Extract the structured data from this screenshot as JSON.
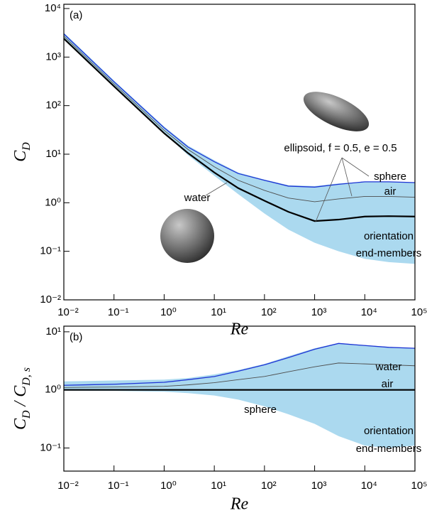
{
  "chart_data": [
    {
      "type": "line",
      "label": "(a)",
      "log_x": true,
      "log_y": true,
      "ylabel": [
        "C",
        "D"
      ],
      "xlabel": "Re",
      "x": [
        0.01,
        0.1,
        1,
        3,
        10,
        30,
        100,
        300,
        1000,
        3000,
        10000,
        30000,
        100000
      ],
      "xlim": [
        0.01,
        100000
      ],
      "xticks": [
        {
          "value": 0.01,
          "label": "10⁻²"
        },
        {
          "value": 0.1,
          "label": "10⁻¹"
        },
        {
          "value": 1,
          "label": "10⁰"
        },
        {
          "value": 10,
          "label": "10¹"
        },
        {
          "value": 100,
          "label": "10²"
        },
        {
          "value": 1000,
          "label": "10³"
        },
        {
          "value": 10000,
          "label": "10⁴"
        },
        {
          "value": 100000,
          "label": "10⁵"
        }
      ],
      "ylim": [
        0.01,
        10000
      ],
      "yticks": [
        {
          "value": 0.01,
          "label": "10⁻²"
        },
        {
          "value": 0.1,
          "label": "10⁻¹"
        },
        {
          "value": 1,
          "label": "10⁰"
        },
        {
          "value": 10,
          "label": "10¹"
        },
        {
          "value": 100,
          "label": "10²"
        },
        {
          "value": 1000,
          "label": "10³"
        },
        {
          "value": 10000,
          "label": "10⁴"
        }
      ],
      "band": {
        "name": [
          "orientation",
          "end-members"
        ],
        "color": "#abd9ef",
        "upper": [
          3200,
          330,
          37,
          15,
          7.5,
          4.2,
          3,
          2.3,
          2.2,
          2.5,
          2.7,
          2.7,
          2.6
        ],
        "lower": [
          2400,
          245,
          27,
          9.5,
          3.6,
          1.5,
          0.6,
          0.28,
          0.15,
          0.1,
          0.07,
          0.06,
          0.055
        ]
      },
      "series": [
        {
          "name": "sphere",
          "color": "#000000",
          "values": [
            2400,
            250,
            27,
            10.5,
            4.2,
            2,
            1.1,
            0.65,
            0.42,
            0.45,
            0.52,
            0.53,
            0.52
          ]
        },
        {
          "name": "air",
          "color": "#4d4d4d",
          "values": [
            2700,
            280,
            31,
            12.5,
            5.5,
            2.9,
            1.8,
            1.25,
            1.05,
            1.2,
            1.35,
            1.35,
            1.3
          ]
        },
        {
          "name": "water",
          "color": "#1d33d4",
          "values": [
            3000,
            310,
            35,
            14,
            7,
            4,
            2.9,
            2.2,
            2.1,
            2.4,
            2.7,
            2.7,
            2.6
          ]
        }
      ],
      "annotations": [
        "ellipsoid, f = 0.5, e = 0.5"
      ]
    },
    {
      "type": "line",
      "label": "(b)",
      "log_x": true,
      "log_y": true,
      "ylabel": [
        "C",
        "D",
        " / C",
        "D, s"
      ],
      "xlabel": "Re",
      "x": [
        0.01,
        0.1,
        1,
        3,
        10,
        30,
        100,
        300,
        1000,
        3000,
        10000,
        30000,
        100000
      ],
      "xlim": [
        0.01,
        100000
      ],
      "xticks": [
        {
          "value": 0.01,
          "label": "10⁻²"
        },
        {
          "value": 0.1,
          "label": "10⁻¹"
        },
        {
          "value": 1,
          "label": "10⁰"
        },
        {
          "value": 10,
          "label": "10¹"
        },
        {
          "value": 100,
          "label": "10²"
        },
        {
          "value": 1000,
          "label": "10³"
        },
        {
          "value": 10000,
          "label": "10⁴"
        },
        {
          "value": 100000,
          "label": "10⁵"
        }
      ],
      "ylim": [
        0.04,
        12.5
      ],
      "yticks": [
        {
          "value": 0.1,
          "label": "10⁻¹"
        },
        {
          "value": 1,
          "label": "10⁰"
        },
        {
          "value": 10,
          "label": "10¹"
        }
      ],
      "band": {
        "name": [
          "orientation",
          "end-members"
        ],
        "color": "#abd9ef",
        "upper": [
          1.4,
          1.45,
          1.5,
          1.6,
          1.85,
          2.2,
          2.8,
          3.8,
          5.2,
          6.4,
          5.9,
          5.5,
          5.2
        ],
        "lower": [
          0.97,
          0.96,
          0.93,
          0.88,
          0.8,
          0.68,
          0.52,
          0.38,
          0.26,
          0.16,
          0.11,
          0.1,
          0.11
        ]
      },
      "series": [
        {
          "name": "sphere",
          "color": "#000000",
          "values": [
            1,
            1,
            1,
            1,
            1,
            1,
            1,
            1,
            1,
            1,
            1,
            1,
            1
          ]
        },
        {
          "name": "air",
          "color": "#4d4d4d",
          "values": [
            1.1,
            1.12,
            1.15,
            1.22,
            1.33,
            1.5,
            1.7,
            2.05,
            2.5,
            2.9,
            2.8,
            2.7,
            2.6
          ]
        },
        {
          "name": "water",
          "color": "#1d33d4",
          "values": [
            1.2,
            1.25,
            1.35,
            1.5,
            1.7,
            2.1,
            2.7,
            3.6,
            5,
            6.3,
            5.8,
            5.4,
            5.2
          ]
        }
      ]
    }
  ]
}
